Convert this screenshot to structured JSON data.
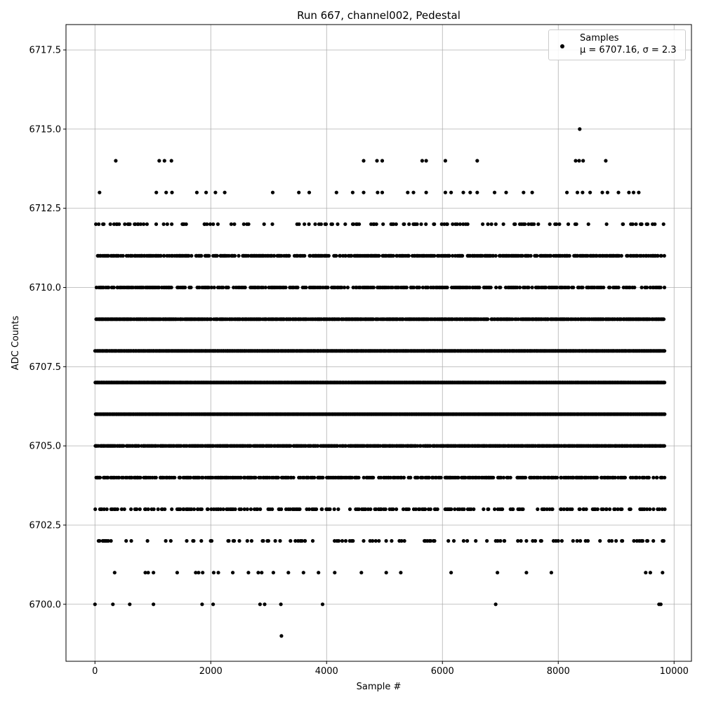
{
  "chart_data": {
    "type": "scatter",
    "title": "Run 667, channel002, Pedestal",
    "xlabel": "Sample #",
    "ylabel": "ADC Counts",
    "xlim": [
      -500,
      10300
    ],
    "ylim": [
      6698.2,
      6718.3
    ],
    "x_ticks": [
      0,
      2000,
      4000,
      6000,
      8000,
      10000
    ],
    "y_ticks": [
      6700.0,
      6702.5,
      6705.0,
      6707.5,
      6710.0,
      6712.5,
      6715.0,
      6717.5
    ],
    "x_tick_labels": [
      "0",
      "2000",
      "4000",
      "6000",
      "8000",
      "10000"
    ],
    "y_tick_labels": [
      "6700.0",
      "6702.5",
      "6705.0",
      "6707.5",
      "6710.0",
      "6712.5",
      "6715.0",
      "6717.5"
    ],
    "grid": true,
    "legend_position": "top-right",
    "series": [
      {
        "name": "Samples",
        "stats_label": "μ = 6707.16, σ = 2.3",
        "color": "#000000",
        "levels": [
          {
            "y": 6706,
            "x_ranges": [
              [
                0,
                9840
              ]
            ],
            "density": 1.0
          },
          {
            "y": 6707,
            "x_ranges": [
              [
                0,
                9840
              ]
            ],
            "density": 1.0
          },
          {
            "y": 6708,
            "x_ranges": [
              [
                0,
                9840
              ]
            ],
            "density": 1.0
          },
          {
            "y": 6705,
            "x_ranges": [
              [
                0,
                9840
              ]
            ],
            "density": 0.85
          },
          {
            "y": 6709,
            "x_ranges": [
              [
                0,
                9840
              ]
            ],
            "density": 0.85
          },
          {
            "y": 6704,
            "x_ranges": [
              [
                0,
                9840
              ]
            ],
            "density": 0.55
          },
          {
            "y": 6710,
            "x_ranges": [
              [
                0,
                9840
              ]
            ],
            "density": 0.5
          },
          {
            "y": 6711,
            "x_ranges": [
              [
                0,
                9840
              ]
            ],
            "density": 0.6
          },
          {
            "y": 6703,
            "x_ranges": [
              [
                0,
                9840
              ]
            ],
            "density": 0.3
          },
          {
            "y": 6712,
            "x_ranges": [
              [
                0,
                9840
              ]
            ],
            "density": 0.18
          },
          {
            "y": 6702,
            "x_ranges": [
              [
                0,
                9840
              ]
            ],
            "density": 0.15
          }
        ],
        "points": [
          {
            "x": 0,
            "y": 6700
          },
          {
            "x": 310,
            "y": 6700
          },
          {
            "x": 600,
            "y": 6700
          },
          {
            "x": 1010,
            "y": 6700
          },
          {
            "x": 1850,
            "y": 6700
          },
          {
            "x": 2040,
            "y": 6700
          },
          {
            "x": 2850,
            "y": 6700
          },
          {
            "x": 2930,
            "y": 6700
          },
          {
            "x": 3210,
            "y": 6700
          },
          {
            "x": 3930,
            "y": 6700
          },
          {
            "x": 6920,
            "y": 6700
          },
          {
            "x": 9740,
            "y": 6700
          },
          {
            "x": 9770,
            "y": 6700
          },
          {
            "x": 3220,
            "y": 6699
          },
          {
            "x": 340,
            "y": 6701
          },
          {
            "x": 870,
            "y": 6701
          },
          {
            "x": 920,
            "y": 6701
          },
          {
            "x": 1010,
            "y": 6701
          },
          {
            "x": 1420,
            "y": 6701
          },
          {
            "x": 1740,
            "y": 6701
          },
          {
            "x": 1790,
            "y": 6701
          },
          {
            "x": 1860,
            "y": 6701
          },
          {
            "x": 2050,
            "y": 6701
          },
          {
            "x": 2130,
            "y": 6701
          },
          {
            "x": 2380,
            "y": 6701
          },
          {
            "x": 2650,
            "y": 6701
          },
          {
            "x": 2820,
            "y": 6701
          },
          {
            "x": 2880,
            "y": 6701
          },
          {
            "x": 3080,
            "y": 6701
          },
          {
            "x": 3340,
            "y": 6701
          },
          {
            "x": 3600,
            "y": 6701
          },
          {
            "x": 3860,
            "y": 6701
          },
          {
            "x": 4140,
            "y": 6701
          },
          {
            "x": 4600,
            "y": 6701
          },
          {
            "x": 5030,
            "y": 6701
          },
          {
            "x": 5280,
            "y": 6701
          },
          {
            "x": 6150,
            "y": 6701
          },
          {
            "x": 6950,
            "y": 6701
          },
          {
            "x": 7450,
            "y": 6701
          },
          {
            "x": 7880,
            "y": 6701
          },
          {
            "x": 9510,
            "y": 6701
          },
          {
            "x": 9590,
            "y": 6701
          },
          {
            "x": 9800,
            "y": 6701
          },
          {
            "x": 80,
            "y": 6713
          },
          {
            "x": 1060,
            "y": 6713
          },
          {
            "x": 1230,
            "y": 6713
          },
          {
            "x": 1330,
            "y": 6713
          },
          {
            "x": 1760,
            "y": 6713
          },
          {
            "x": 1920,
            "y": 6713
          },
          {
            "x": 2080,
            "y": 6713
          },
          {
            "x": 2240,
            "y": 6713
          },
          {
            "x": 3070,
            "y": 6713
          },
          {
            "x": 3520,
            "y": 6713
          },
          {
            "x": 3700,
            "y": 6713
          },
          {
            "x": 4170,
            "y": 6713
          },
          {
            "x": 4450,
            "y": 6713
          },
          {
            "x": 4640,
            "y": 6713
          },
          {
            "x": 4880,
            "y": 6713
          },
          {
            "x": 4960,
            "y": 6713
          },
          {
            "x": 5400,
            "y": 6713
          },
          {
            "x": 5500,
            "y": 6713
          },
          {
            "x": 5720,
            "y": 6713
          },
          {
            "x": 6050,
            "y": 6713
          },
          {
            "x": 6150,
            "y": 6713
          },
          {
            "x": 6360,
            "y": 6713
          },
          {
            "x": 6480,
            "y": 6713
          },
          {
            "x": 6600,
            "y": 6713
          },
          {
            "x": 6900,
            "y": 6713
          },
          {
            "x": 7100,
            "y": 6713
          },
          {
            "x": 7400,
            "y": 6713
          },
          {
            "x": 7550,
            "y": 6713
          },
          {
            "x": 8150,
            "y": 6713
          },
          {
            "x": 8330,
            "y": 6713
          },
          {
            "x": 8420,
            "y": 6713
          },
          {
            "x": 8550,
            "y": 6713
          },
          {
            "x": 8760,
            "y": 6713
          },
          {
            "x": 8850,
            "y": 6713
          },
          {
            "x": 9040,
            "y": 6713
          },
          {
            "x": 9220,
            "y": 6713
          },
          {
            "x": 9300,
            "y": 6713
          },
          {
            "x": 9390,
            "y": 6713
          },
          {
            "x": 360,
            "y": 6714
          },
          {
            "x": 1110,
            "y": 6714
          },
          {
            "x": 1200,
            "y": 6714
          },
          {
            "x": 1320,
            "y": 6714
          },
          {
            "x": 4640,
            "y": 6714
          },
          {
            "x": 4870,
            "y": 6714
          },
          {
            "x": 4960,
            "y": 6714
          },
          {
            "x": 5650,
            "y": 6714
          },
          {
            "x": 5720,
            "y": 6714
          },
          {
            "x": 6050,
            "y": 6714
          },
          {
            "x": 6600,
            "y": 6714
          },
          {
            "x": 8300,
            "y": 6714
          },
          {
            "x": 8360,
            "y": 6714
          },
          {
            "x": 8430,
            "y": 6714
          },
          {
            "x": 8820,
            "y": 6714
          },
          {
            "x": 8370,
            "y": 6715
          }
        ]
      }
    ]
  },
  "legend": {
    "label": "Samples",
    "stats": "μ = 6707.16, σ = 2.3"
  }
}
